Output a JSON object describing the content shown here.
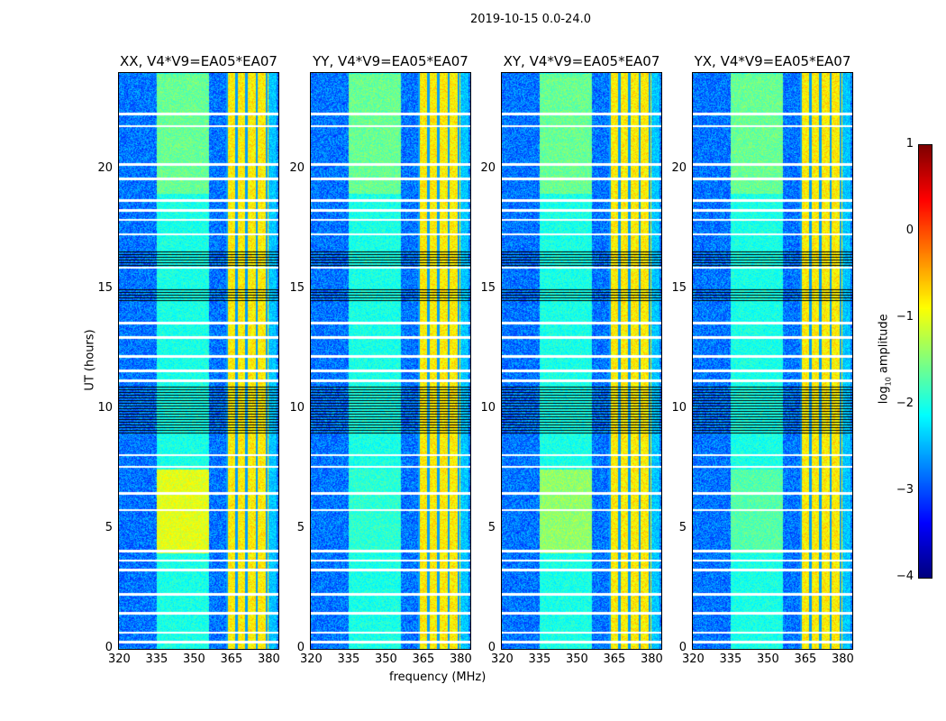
{
  "chart_data": {
    "type": "heatmap",
    "title": "2019-10-15 0.0-24.0",
    "xlabel": "frequency (MHz)",
    "ylabel": "UT (hours)",
    "xlim": [
      320,
      384
    ],
    "ylim": [
      0,
      24
    ],
    "xticks": [
      "320",
      "335",
      "350",
      "365",
      "380"
    ],
    "yticks": [
      "0",
      "5",
      "10",
      "15",
      "20"
    ],
    "panels": [
      {
        "title": "XX, V4*V9=EA05*EA07",
        "broadband_peak": -1.0
      },
      {
        "title": "YY, V4*V9=EA05*EA07",
        "broadband_peak": -1.9
      },
      {
        "title": "XY, V4*V9=EA05*EA07",
        "broadband_peak": -1.4
      },
      {
        "title": "YX, V4*V9=EA05*EA07",
        "broadband_peak": -1.7
      }
    ],
    "features": {
      "background_level": -2.8,
      "broadband_MHz": [
        335,
        356
      ],
      "bright_band_MHz": [
        363,
        380
      ],
      "bright_band_level": -0.8,
      "channel_edges_MHz": [
        363,
        367,
        371,
        375,
        379
      ],
      "flagged_white_UT": [
        0.3,
        0.7,
        1.5,
        2.3,
        3.3,
        3.7,
        4.1,
        5.8,
        6.5,
        7.6,
        8.1,
        11.2,
        11.6,
        12.2,
        13.0,
        13.6,
        15.9,
        17.3,
        17.9,
        18.3,
        18.7,
        19.6,
        20.2,
        21.8,
        22.3
      ],
      "flagged_black_UT": [
        [
          9.0,
          11.0
        ],
        [
          14.5,
          15.0
        ],
        [
          16.0,
          16.6
        ]
      ]
    },
    "colorbar": {
      "label_prefix": "log",
      "label_sub": "10",
      "label_suffix": " amplitude",
      "range": [
        -4,
        1
      ],
      "ticks": [
        "1",
        "0",
        "−1",
        "−2",
        "−3",
        "−4"
      ],
      "colormap": "jet"
    }
  }
}
